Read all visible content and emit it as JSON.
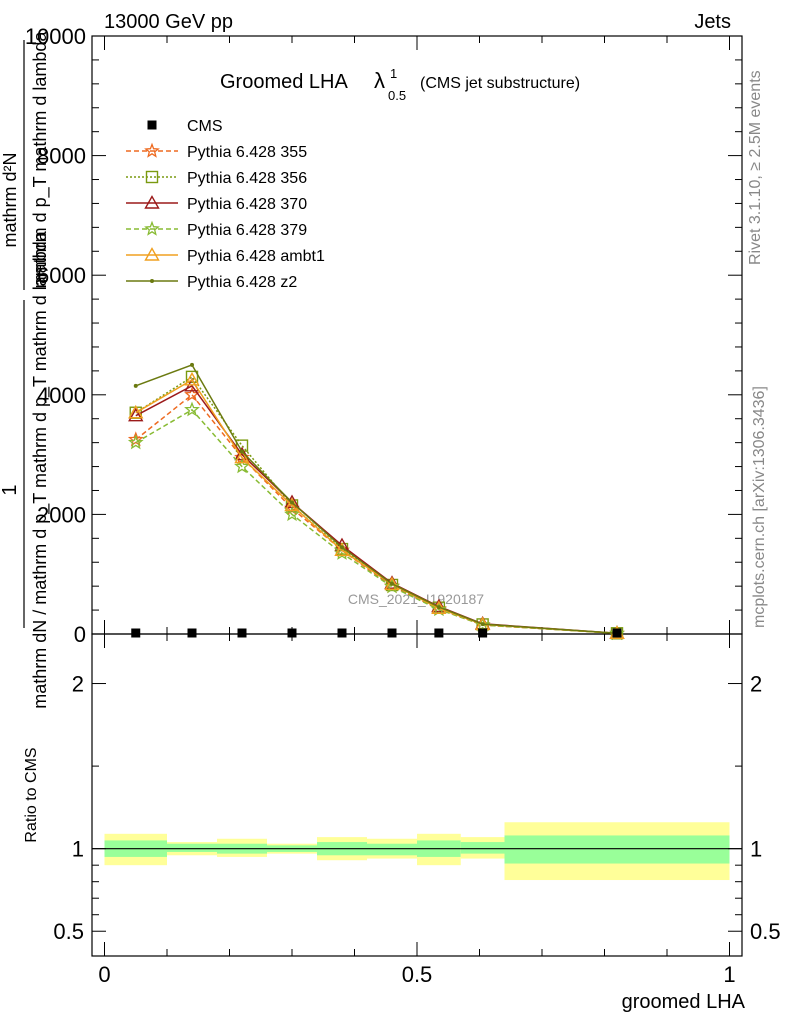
{
  "header": {
    "left": "13000 GeV pp",
    "right": "Jets"
  },
  "plot_title": {
    "main": "Groomed LHA",
    "lambda": "λ",
    "sup": "1",
    "sub": "0.5",
    "suffix": "(CMS jet substructure)"
  },
  "side_labels": {
    "rivet": "Rivet 3.1.10, ≥ 2.5M events",
    "mcplots": "mcplots.cern.ch [arXiv:1306.3436]"
  },
  "watermark": "CMS_2021_I1920187",
  "ylabel_top": {
    "numerator": "1",
    "denominator": "mathrm dN / mathrm d p_T mathrm d p_T mathrm d lambda",
    "rhs_num": "mathrm d²N",
    "rhs_den": "mathrm d p_T mathrm d lambda"
  },
  "ylabel_ratio": "Ratio to CMS",
  "xlabel": "groomed LHA",
  "legend": [
    {
      "label": "CMS",
      "color": "#000000",
      "marker": "square",
      "dash": ""
    },
    {
      "label": "Pythia 6.428 355",
      "color": "#ee6a20",
      "marker": "star",
      "dash": "5,3"
    },
    {
      "label": "Pythia 6.428 356",
      "color": "#7a9a10",
      "marker": "square-open",
      "dash": "2,2"
    },
    {
      "label": "Pythia 6.428 370",
      "color": "#9b1a1a",
      "marker": "triangle-open",
      "dash": ""
    },
    {
      "label": "Pythia 6.428 379",
      "color": "#88bb33",
      "marker": "star",
      "dash": "5,3"
    },
    {
      "label": "Pythia 6.428 ambt1",
      "color": "#f0a020",
      "marker": "triangle-open",
      "dash": ""
    },
    {
      "label": "Pythia 6.428 z2",
      "color": "#6b7a10",
      "marker": "dot",
      "dash": ""
    }
  ],
  "chart_data": {
    "type": "line",
    "x": [
      0.05,
      0.14,
      0.22,
      0.3,
      0.38,
      0.46,
      0.535,
      0.605,
      0.82
    ],
    "xlim": [
      -0.02,
      1.02
    ],
    "ylim": [
      0,
      10000
    ],
    "top_ticks": [
      "0",
      "2000",
      "4000",
      "6000",
      "8000",
      "10000"
    ],
    "top_tick_values": [
      0,
      2000,
      4000,
      6000,
      8000,
      10000
    ],
    "x_ticks": [
      "0",
      "0.5",
      "1"
    ],
    "x_tick_values": [
      0,
      0.5,
      1
    ],
    "cms_values": [
      0,
      0,
      0,
      0,
      0,
      0,
      0,
      0,
      0
    ],
    "series": [
      {
        "name": "Pythia 6.428 355",
        "values": [
          3250,
          4000,
          2950,
          2100,
          1400,
          800,
          420,
          150,
          10
        ]
      },
      {
        "name": "Pythia 6.428 356",
        "values": [
          3700,
          4300,
          3150,
          2150,
          1420,
          820,
          440,
          160,
          12
        ]
      },
      {
        "name": "Pythia 6.428 370",
        "values": [
          3650,
          4150,
          3000,
          2200,
          1480,
          850,
          460,
          170,
          12
        ]
      },
      {
        "name": "Pythia 6.428 379",
        "values": [
          3200,
          3750,
          2800,
          2000,
          1350,
          790,
          410,
          150,
          10
        ]
      },
      {
        "name": "Pythia 6.428 ambt1",
        "values": [
          3700,
          4250,
          2950,
          2150,
          1400,
          830,
          430,
          160,
          12
        ]
      },
      {
        "name": "Pythia 6.428 z2",
        "values": [
          4150,
          4500,
          3050,
          2200,
          1450,
          840,
          450,
          165,
          12
        ]
      }
    ],
    "ratio": {
      "ylim": [
        0.35,
        2.3
      ],
      "ticks": [
        "0.5",
        "1",
        "2"
      ],
      "tick_values": [
        0.5,
        1,
        2
      ],
      "bins": [
        {
          "x0": 0.0,
          "x1": 0.1,
          "green": [
            0.95,
            1.05
          ],
          "yellow": [
            0.9,
            1.09
          ]
        },
        {
          "x0": 0.1,
          "x1": 0.18,
          "green": [
            0.98,
            1.03
          ],
          "yellow": [
            0.96,
            1.04
          ]
        },
        {
          "x0": 0.18,
          "x1": 0.26,
          "green": [
            0.97,
            1.03
          ],
          "yellow": [
            0.95,
            1.06
          ]
        },
        {
          "x0": 0.26,
          "x1": 0.34,
          "green": [
            0.98,
            1.02
          ],
          "yellow": [
            0.97,
            1.03
          ]
        },
        {
          "x0": 0.34,
          "x1": 0.42,
          "green": [
            0.96,
            1.04
          ],
          "yellow": [
            0.93,
            1.07
          ]
        },
        {
          "x0": 0.42,
          "x1": 0.5,
          "green": [
            0.96,
            1.03
          ],
          "yellow": [
            0.94,
            1.06
          ]
        },
        {
          "x0": 0.5,
          "x1": 0.57,
          "green": [
            0.95,
            1.05
          ],
          "yellow": [
            0.9,
            1.09
          ]
        },
        {
          "x0": 0.57,
          "x1": 0.64,
          "green": [
            0.97,
            1.04
          ],
          "yellow": [
            0.94,
            1.07
          ]
        },
        {
          "x0": 0.64,
          "x1": 1.0,
          "green": [
            0.91,
            1.08
          ],
          "yellow": [
            0.81,
            1.16
          ]
        }
      ]
    }
  }
}
